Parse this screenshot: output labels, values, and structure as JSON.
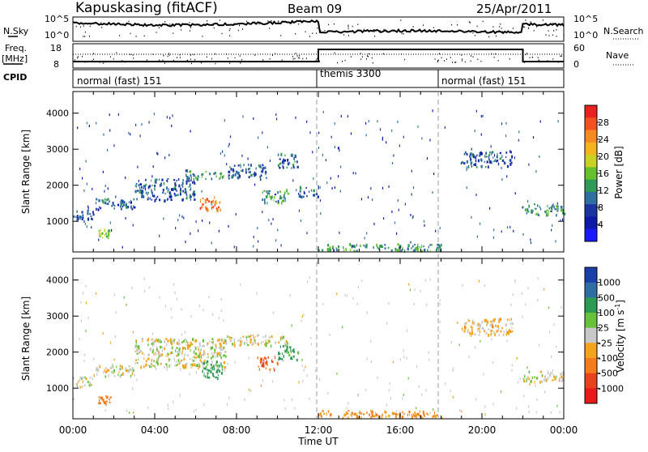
{
  "header": {
    "station": "Kapuskasing (fitACF)",
    "beam": "Beam 09",
    "date": "25/Apr/2011"
  },
  "panels": {
    "nsky": {
      "label": "N.Sky",
      "ticks_left": [
        "10^5",
        "10^0"
      ],
      "ticks_right": [
        "10^5",
        "10^0"
      ],
      "right_label": "N.Search"
    },
    "freq": {
      "label_line1": "Freq.",
      "label_line2": "[MHz]",
      "ticks_left": [
        "18",
        "8"
      ],
      "ticks_right": [
        "60",
        "0"
      ],
      "right_label": "Nave"
    },
    "cpid": {
      "label": "CPID",
      "segments": [
        {
          "name": "normal (fast) 151",
          "start_h": 0,
          "end_h": 12
        },
        {
          "name": "themis 3300",
          "start_h": 12,
          "end_h": 18
        },
        {
          "name": "normal (fast) 151",
          "start_h": 18,
          "end_h": 24
        }
      ]
    }
  },
  "power_colorbar": {
    "label": "Power [dB]",
    "ticks": [
      "28",
      "24",
      "20",
      "16",
      "12",
      "8",
      "4"
    ],
    "colors": [
      "#e8231f",
      "#f2521f",
      "#f58a22",
      "#f5b31f",
      "#c9d224",
      "#66c02c",
      "#2f9b56",
      "#2f6fa1",
      "#1a35a0",
      "#0d1aa8",
      "#1a1aff"
    ]
  },
  "velocity_colorbar": {
    "label": "Velocity [m s^-1]",
    "ticks": [
      "1000",
      "500",
      "100",
      "25",
      "-25",
      "-100",
      "-500",
      "-1000"
    ],
    "colors": [
      "#1b3fa8",
      "#2f6ea4",
      "#2e9b55",
      "#67c23a",
      "#c8c8c8",
      "#f3a41d",
      "#f47c1c",
      "#e8431f",
      "#e81a1a"
    ]
  },
  "chart_data": [
    {
      "type": "heatmap",
      "title": "Power",
      "ylabel": "Slant Range [km]",
      "ylim": [
        150,
        4600
      ],
      "yticks": [
        1000,
        2000,
        3000,
        4000
      ],
      "xlim": [
        0,
        24
      ],
      "grid": false,
      "regions": [
        {
          "x": [
            0.0,
            1.0
          ],
          "y": [
            1050,
            1350
          ],
          "power_db": 8
        },
        {
          "x": [
            1.0,
            3.0
          ],
          "y": [
            1350,
            1650
          ],
          "power_db": 8
        },
        {
          "x": [
            1.2,
            1.8
          ],
          "y": [
            560,
            800
          ],
          "power_db": 16
        },
        {
          "x": [
            3.0,
            6.0
          ],
          "y": [
            1600,
            2200
          ],
          "power_db": 8
        },
        {
          "x": [
            5.5,
            7.5
          ],
          "y": [
            2200,
            2450
          ],
          "power_db": 12
        },
        {
          "x": [
            6.2,
            7.2
          ],
          "y": [
            1300,
            1700
          ],
          "power_db": 24
        },
        {
          "x": [
            7.5,
            9.5
          ],
          "y": [
            2200,
            2600
          ],
          "power_db": 8
        },
        {
          "x": [
            9.2,
            10.5
          ],
          "y": [
            1500,
            1900
          ],
          "power_db": 12
        },
        {
          "x": [
            10.0,
            11.0
          ],
          "y": [
            2500,
            2900
          ],
          "power_db": 8
        },
        {
          "x": [
            11.0,
            12.0
          ],
          "y": [
            1700,
            2000
          ],
          "power_db": 8
        },
        {
          "x": [
            12.0,
            18.0
          ],
          "y": [
            200,
            400
          ],
          "power_db": 12
        },
        {
          "x": [
            19.0,
            21.5
          ],
          "y": [
            2500,
            2950
          ],
          "power_db": 8
        },
        {
          "x": [
            22.0,
            24.0
          ],
          "y": [
            1200,
            1500
          ],
          "power_db": 12
        }
      ]
    },
    {
      "type": "heatmap",
      "title": "Velocity",
      "ylabel": "Slant Range [km]",
      "ylim": [
        150,
        4600
      ],
      "yticks": [
        1000,
        2000,
        3000,
        4000
      ],
      "xlim": [
        0,
        24
      ],
      "xlabel": "Time UT",
      "xtick_labels": [
        "00:00",
        "04:00",
        "08:00",
        "12:00",
        "16:00",
        "20:00",
        "00:00"
      ],
      "grid": false,
      "regions": [
        {
          "x": [
            0.0,
            1.0
          ],
          "y": [
            1050,
            1350
          ],
          "velocity": 0
        },
        {
          "x": [
            1.0,
            3.0
          ],
          "y": [
            1350,
            1650
          ],
          "velocity": 0
        },
        {
          "x": [
            1.2,
            1.8
          ],
          "y": [
            560,
            800
          ],
          "velocity": -200
        },
        {
          "x": [
            3.0,
            7.5
          ],
          "y": [
            1600,
            2400
          ],
          "velocity": 0
        },
        {
          "x": [
            6.3,
            7.3
          ],
          "y": [
            1300,
            1800
          ],
          "velocity": 300
        },
        {
          "x": [
            7.5,
            10.5
          ],
          "y": [
            2200,
            2500
          ],
          "velocity": 0
        },
        {
          "x": [
            9.0,
            10.0
          ],
          "y": [
            1500,
            1900
          ],
          "velocity": -500
        },
        {
          "x": [
            10.0,
            11.0
          ],
          "y": [
            1800,
            2200
          ],
          "velocity": 150
        },
        {
          "x": [
            12.0,
            18.0
          ],
          "y": [
            200,
            400
          ],
          "velocity": -100
        },
        {
          "x": [
            19.0,
            21.5
          ],
          "y": [
            2500,
            2950
          ],
          "velocity": -50
        },
        {
          "x": [
            22.0,
            24.0
          ],
          "y": [
            1200,
            1500
          ],
          "velocity": 0
        }
      ]
    }
  ]
}
